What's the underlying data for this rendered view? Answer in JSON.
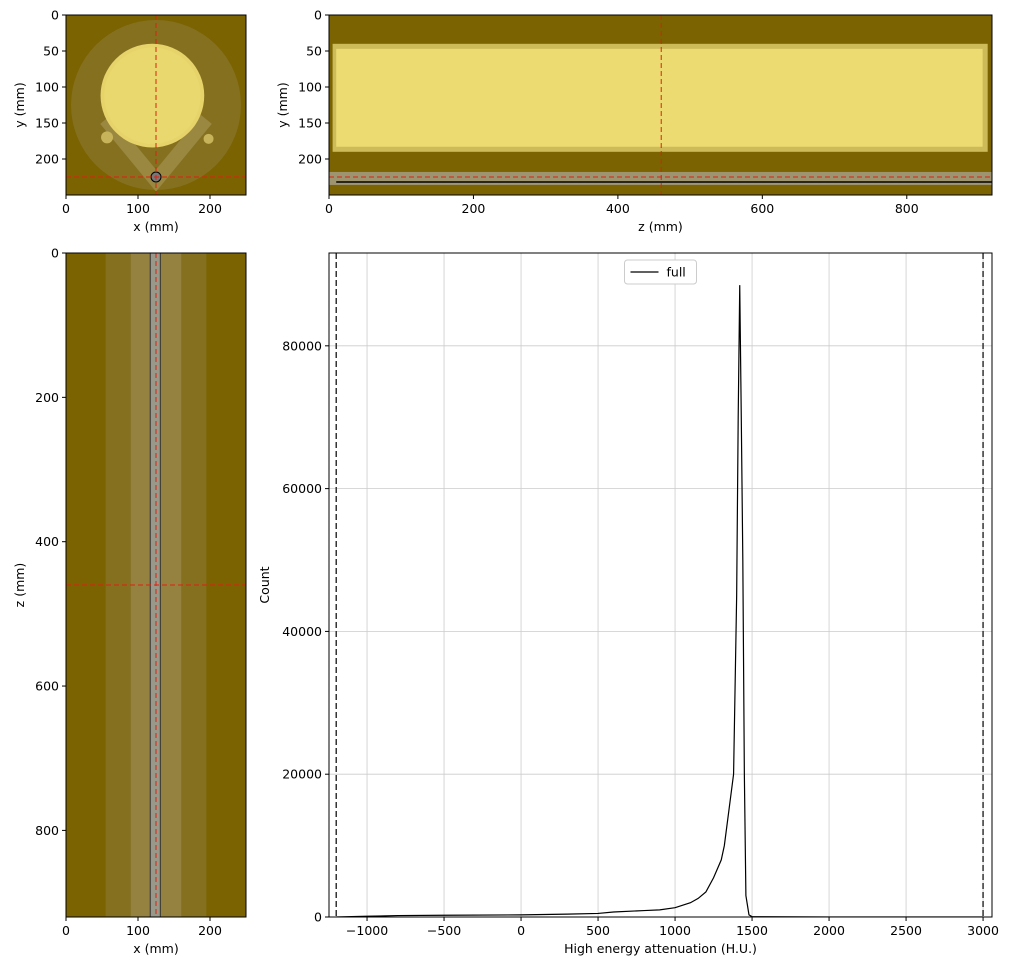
{
  "chart_data": [
    {
      "type": "image",
      "xlabel": "x (mm)",
      "ylabel": "y (mm)",
      "xlim": [
        0,
        250
      ],
      "xticks": [
        0,
        100,
        200
      ],
      "ylim": [
        250,
        0
      ],
      "yticks": [
        0,
        50,
        100,
        150,
        200
      ],
      "crosshair": {
        "x": 125,
        "y": 225
      }
    },
    {
      "type": "image",
      "xlabel": "z (mm)",
      "ylabel": "y (mm)",
      "xlim": [
        0,
        918
      ],
      "xticks": [
        0,
        200,
        400,
        600,
        800
      ],
      "ylim": [
        250,
        0
      ],
      "yticks": [
        0,
        50,
        100,
        150,
        200
      ],
      "crosshair": {
        "x": 460,
        "y": 225
      }
    },
    {
      "type": "image",
      "xlabel": "x (mm)",
      "ylabel": "z (mm)",
      "xlim": [
        0,
        250
      ],
      "xticks": [
        0,
        100,
        200
      ],
      "ylim": [
        920,
        0
      ],
      "yticks": [
        0,
        200,
        400,
        600,
        800
      ],
      "crosshair": {
        "x": 125,
        "y": 460
      }
    },
    {
      "type": "line",
      "xlabel": "High energy attenuation (H.U.)",
      "ylabel": "Count",
      "xlim": [
        -1247,
        3058
      ],
      "xticks": [
        {
          "value": -1000,
          "label": "−1000"
        },
        {
          "value": -500,
          "label": "−500"
        },
        0,
        500,
        1000,
        1500,
        2000,
        2500,
        3000
      ],
      "ylim": [
        0,
        93000
      ],
      "yticks": [
        0,
        20000,
        40000,
        60000,
        80000
      ],
      "grid": true,
      "legend": "upper center",
      "thresholds": [
        -1200,
        3000
      ],
      "x": [
        -1200,
        -1000,
        -800,
        -500,
        0,
        300,
        500,
        600,
        800,
        900,
        1000,
        1100,
        1150,
        1200,
        1250,
        1270,
        1300,
        1320,
        1350,
        1380,
        1400,
        1410,
        1420,
        1430,
        1440,
        1450,
        1460,
        1480,
        1500,
        2000,
        3000
      ],
      "series": [
        {
          "name": "full",
          "color": "#000000",
          "values": [
            0,
            100,
            200,
            250,
            300,
            400,
            500,
            700,
            900,
            1000,
            1300,
            2000,
            2600,
            3500,
            5500,
            6500,
            8000,
            10000,
            15000,
            20000,
            45000,
            70000,
            88500,
            70000,
            50000,
            20000,
            3000,
            300,
            50,
            0,
            0
          ]
        }
      ]
    }
  ]
}
